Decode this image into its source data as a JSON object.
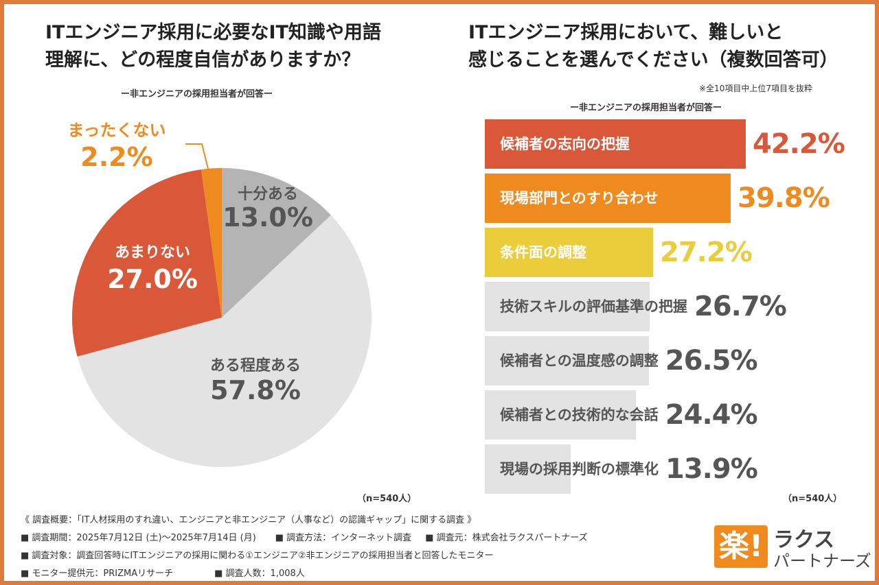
{
  "left": {
    "title_line1": "ITエンジニア採用に必要なIT知識や用語",
    "title_line2": "理解に、どの程度自信がありますか？",
    "subtitle": "ー非エンジニアの採用担当者が回答ー",
    "n_label": "（n=540人）"
  },
  "right": {
    "title_line1": "ITエンジニア採用において、難しいと",
    "title_line2": "感じることを選んでください（複数回答可）",
    "note": "※全10項目中上位7項目を抜粋",
    "subtitle": "ー非エンジニアの採用担当者が回答ー",
    "n_label": "（n=540人）"
  },
  "chart_data": [
    {
      "type": "pie",
      "start": "12 o'clock, clockwise",
      "slices": [
        {
          "label": "十分ある",
          "value": 13.0,
          "display": "13.0%",
          "color": "#b4b4b4",
          "text_color": "#555555"
        },
        {
          "label": "ある程度ある",
          "value": 57.8,
          "display": "57.8%",
          "color": "#e3e3e3",
          "text_color": "#555555"
        },
        {
          "label": "あまりない",
          "value": 27.0,
          "display": "27.0%",
          "color": "#d9583a",
          "text_color": "#ffffff"
        },
        {
          "label": "まったくない",
          "value": 2.2,
          "display": "2.2%",
          "color": "#ef8a1e",
          "text_color": "#ef8a1e"
        }
      ]
    },
    {
      "type": "bar",
      "orientation": "horizontal",
      "xlim": [
        0,
        42.2
      ],
      "categories": [
        "候補者の志向の把握",
        "現場部門とのすり合わせ",
        "条件面の調整",
        "技術スキルの評価基準の把握",
        "候補者との温度感の調整",
        "候補者との技術的な会話",
        "現場の採用判断の標準化"
      ],
      "values": [
        42.2,
        39.8,
        27.2,
        26.7,
        26.5,
        24.4,
        13.9
      ],
      "display": [
        "42.2%",
        "39.8%",
        "27.2%",
        "26.7%",
        "26.5%",
        "24.4%",
        "13.9%"
      ],
      "colors": [
        "#d9583a",
        "#ef8a1e",
        "#ebcd3c",
        "#e3e3e3",
        "#e3e3e3",
        "#e3e3e3",
        "#e3e3e3"
      ],
      "label_colors": [
        "#ffffff",
        "#ffffff",
        "#ffffff",
        "#555555",
        "#555555",
        "#555555",
        "#555555"
      ],
      "value_colors": [
        "#d9583a",
        "#ef8a1e",
        "#ebcd3c",
        "#555555",
        "#555555",
        "#555555",
        "#555555"
      ]
    }
  ],
  "survey": {
    "heading": "《 調査概要：「IT人材採用のすれ違い、エンジニアと非エンジニア（人事など）の認識ギャップ」に関する調査 》",
    "period": "■ 調査期間：2025年7月12日 (土)〜2025年7月14日 (月)",
    "method": "■ 調査方法：インターネット調査",
    "source": "■ 調査元：株式会社ラクスパートナーズ",
    "target": "■ 調査対象：調査回答時にITエンジニアの採用に関わる①エンジニア②非エンジニアの採用担当者と回答したモニター",
    "monitor": "■ モニター提供元：PRIZMAリサーチ",
    "count": "■ 調査人数：1,008人"
  },
  "logo": {
    "mark": "楽!",
    "line1": "ラクス",
    "line2": "パートナーズ"
  }
}
